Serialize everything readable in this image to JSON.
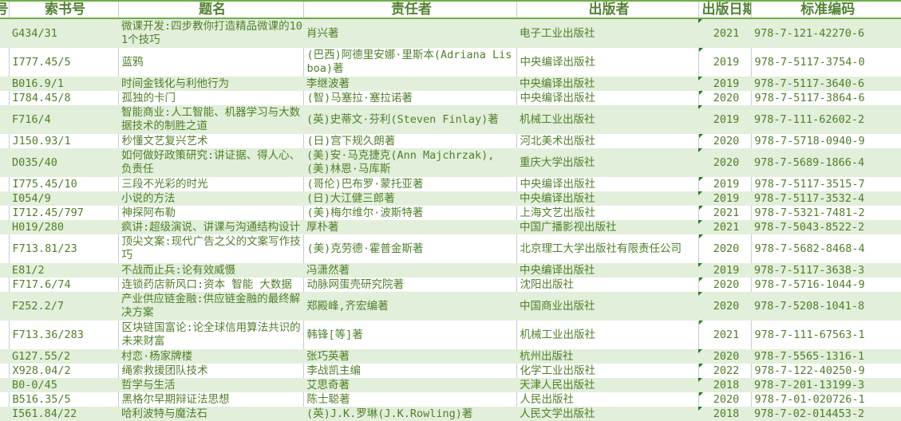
{
  "headers": [
    "号",
    "索书号",
    "题名",
    "责任者",
    "出版者",
    "出版日期",
    "标准编码"
  ],
  "rows": [
    {
      "call": "G434/31",
      "title": "微课开发:四步教你打造精品微课的101个技巧",
      "author": "肖兴著",
      "publisher": "电子工业出版社",
      "year": "2021",
      "isbn": "978-7-121-42270-6",
      "tall": true
    },
    {
      "call": "I777.45/5",
      "title": "蓝鸦",
      "author": "(巴西)阿德里安娜·里斯本(Adriana Lisboa)著",
      "publisher": "中央编译出版社",
      "year": "2019",
      "isbn": "978-7-5117-3754-0",
      "tall": true
    },
    {
      "call": "B016.9/1",
      "title": "时间金钱化与利他行为",
      "author": "李继波著",
      "publisher": "中央编译出版社",
      "year": "2019",
      "isbn": "978-7-5117-3640-6"
    },
    {
      "call": "I784.45/8",
      "title": "孤独的卡门",
      "author": "(智)马塞拉·塞拉诺著",
      "publisher": "中央编译出版社",
      "year": "2020",
      "isbn": "978-7-5117-3864-6"
    },
    {
      "call": "F716/4",
      "title": "智能商业:人工智能、机器学习与大数据技术的制胜之道",
      "author": "(英)史蒂文·芬利(Steven Finlay)著",
      "publisher": "机械工业出版社",
      "year": "2019",
      "isbn": "978-7-111-62602-2",
      "tall": true
    },
    {
      "call": "J150.93/1",
      "title": "秒懂文艺复兴艺术",
      "author": "(日)宫下规久朗著",
      "publisher": "河北美术出版社",
      "year": "2020",
      "isbn": "978-7-5718-0940-9"
    },
    {
      "call": "D035/40",
      "title": "如何做好政策研究:讲证据、得人心、负责任",
      "author": "(美)安·马克捷克(Ann Majchrzak),(美)林恩·马库斯",
      "publisher": "重庆大学出版社",
      "year": "2020",
      "isbn": "978-7-5689-1866-4",
      "tall": true
    },
    {
      "call": "I775.45/10",
      "title": "三段不光彩的时光",
      "author": "(哥伦)巴布罗·蒙托亚著",
      "publisher": "中央编译出版社",
      "year": "2019",
      "isbn": "978-7-5117-3515-7"
    },
    {
      "call": "I054/9",
      "title": "小说的方法",
      "author": "(日)大江健三郎著",
      "publisher": "中央编译出版社",
      "year": "2019",
      "isbn": "978-7-5117-3532-4"
    },
    {
      "call": "I712.45/797",
      "title": "神探阿布勒",
      "author": "(美)梅尔维尔·波斯特著",
      "publisher": "上海文艺出版社",
      "year": "2021",
      "isbn": "978-7-5321-7481-2"
    },
    {
      "call": "H019/280",
      "title": "疯讲:超级演说、讲课与沟通结构设计",
      "author": "厚朴著",
      "publisher": "中国广播影视出版社",
      "year": "2021",
      "isbn": "978-7-5043-8522-2"
    },
    {
      "call": "F713.81/23",
      "title": "顶尖文案:现代广告之父的文案写作技巧",
      "author": "(美)克劳德·霍普金斯著",
      "publisher": "北京理工大学出版社有限责任公司",
      "year": "2020",
      "isbn": "978-7-5682-8468-4",
      "tall": true
    },
    {
      "call": "E81/2",
      "title": "不战而止兵:论有效威慑",
      "author": "冯潇然著",
      "publisher": "中央编译出版社",
      "year": "2019",
      "isbn": "978-7-5117-3638-3"
    },
    {
      "call": "F717.6/74",
      "title": "连锁药店新风口:资本 智能 大数据",
      "author": "动脉网蛋壳研究院著",
      "publisher": "沈阳出版社",
      "year": "2020",
      "isbn": "978-7-5716-1044-9"
    },
    {
      "call": "F252.2/7",
      "title": "产业供应链金融:供应链金融的最终解决方案",
      "author": "郑殿峰,齐宏编著",
      "publisher": "中国商业出版社",
      "year": "2020",
      "isbn": "978-7-5208-1041-8",
      "tall": true
    },
    {
      "call": "F713.36/283",
      "title": "区块链国富论:论全球信用算法共识的未来财富",
      "author": "韩锋[等]著",
      "publisher": "机械工业出版社",
      "year": "2021",
      "isbn": "978-7-111-67563-1",
      "tall": true
    },
    {
      "call": "G127.55/2",
      "title": "村恋·杨家牌楼",
      "author": "张巧英著",
      "publisher": "杭州出版社",
      "year": "2020",
      "isbn": "978-7-5565-1316-1"
    },
    {
      "call": "X928.04/2",
      "title": "绳索救援团队技术",
      "author": "李战凯主编",
      "publisher": "化学工业出版社",
      "year": "2022",
      "isbn": "978-7-122-40250-9"
    },
    {
      "call": "B0-0/45",
      "title": "哲学与生活",
      "author": "艾思奇著",
      "publisher": "天津人民出版社",
      "year": "2018",
      "isbn": "978-7-201-13199-3"
    },
    {
      "call": "B516.35/5",
      "title": "黑格尔早期辩证法思想",
      "author": "陈士聪著",
      "publisher": "人民出版社",
      "year": "2020",
      "isbn": "978-7-01-020726-1"
    },
    {
      "call": "I561.84/22",
      "title": "哈利波特与魔法石",
      "author": "(英)J.K.罗琳(J.K.Rowling)著",
      "publisher": "人民文学出版社",
      "year": "2018",
      "isbn": "978-7-02-014453-2"
    }
  ],
  "colors": {
    "band": "#e2efda",
    "text": "#4f7f2a",
    "header": "#548235",
    "indicator": "#1e7b1e"
  }
}
